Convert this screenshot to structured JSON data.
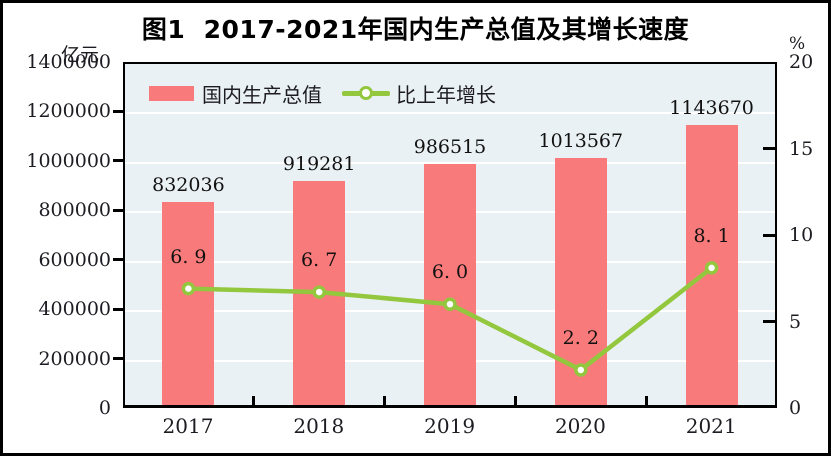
{
  "figure": {
    "title": "图1  2017-2021年国内生产总值及其增长速度",
    "left_axis_unit": "亿元",
    "right_axis_unit": "%"
  },
  "legend": {
    "items": [
      {
        "label": "国内生产总值",
        "type": "bar",
        "color": "#F97A7A"
      },
      {
        "label": "比上年增长",
        "type": "line",
        "color": "#92C73E"
      }
    ]
  },
  "chart_data": {
    "type": "bar+line",
    "title": "图1  2017-2021年国内生产总值及其增长速度",
    "categories": [
      "2017",
      "2018",
      "2019",
      "2020",
      "2021"
    ],
    "series": [
      {
        "name": "国内生产总值",
        "type": "bar",
        "axis": "left",
        "unit": "亿元",
        "values": [
          832036,
          919281,
          986515,
          1013567,
          1143670
        ],
        "value_labels": [
          "832036",
          "919281",
          "986515",
          "1013567",
          "1143670"
        ],
        "color": "#F97A7A"
      },
      {
        "name": "比上年增长",
        "type": "line",
        "axis": "right",
        "unit": "%",
        "values": [
          6.9,
          6.7,
          6.0,
          2.2,
          8.1
        ],
        "value_labels": [
          "6. 9",
          "6. 7",
          "6. 0",
          "2. 2",
          "8. 1"
        ],
        "color": "#92C73E",
        "marker": "circle",
        "marker_fill": "#FFFFFF"
      }
    ],
    "left_axis": {
      "unit": "亿元",
      "min": 0,
      "max": 1400000,
      "step": 200000,
      "tick_labels": [
        "1400000",
        "1200000",
        "1000000",
        "800000",
        "600000",
        "400000",
        "200000",
        "0"
      ]
    },
    "right_axis": {
      "unit": "%",
      "min": 0,
      "max": 20,
      "step": 5,
      "tick_labels": [
        "20",
        "15",
        "10",
        "5",
        "0"
      ]
    },
    "grid": "horizontal",
    "grid_color": "#FFFFFF",
    "plot_background": "#EAF1F4",
    "legend_position": "top-left-inside"
  }
}
